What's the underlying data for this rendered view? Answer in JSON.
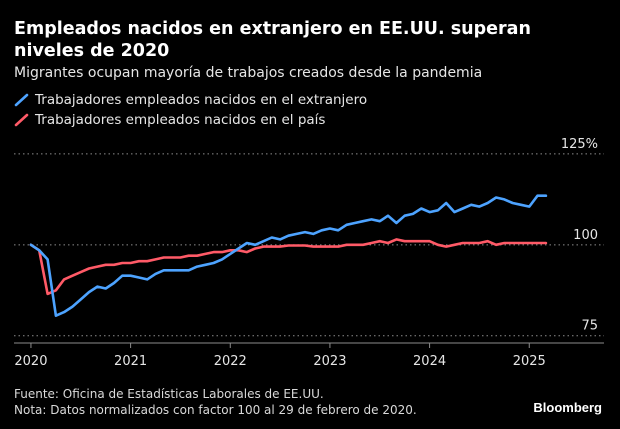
{
  "header": {
    "title": "Empleados nacidos en extranjero en EE.UU. superan niveles de 2020",
    "subtitle": "Migrantes ocupan mayoría de trabajos creados desde la pandemia"
  },
  "footer": {
    "source": "Fuente: Oficina de Estadísticas Laborales de EE.UU.",
    "note": "Nota: Datos normalizados con factor 100 al 29 de febrero de 2020.",
    "brand": "Bloomberg"
  },
  "colors": {
    "background": "#000000",
    "foreign_series": "#4da3ff",
    "native_series": "#ff5a67",
    "gridline": "#8c8c8c",
    "text": "#ffffff"
  },
  "chart_data": {
    "type": "line",
    "x_type": "year",
    "xlim": [
      2019.83,
      2025.75
    ],
    "ylim": [
      73,
      128
    ],
    "x_ticks": [
      {
        "value": 2020,
        "label": "2020"
      },
      {
        "value": 2021,
        "label": "2021"
      },
      {
        "value": 2022,
        "label": "2022"
      },
      {
        "value": 2023,
        "label": "2023"
      },
      {
        "value": 2024,
        "label": "2024"
      },
      {
        "value": 2025,
        "label": "2025"
      }
    ],
    "y_ticks": [
      {
        "value": 75,
        "label": "75"
      },
      {
        "value": 100,
        "label": "100"
      },
      {
        "value": 125,
        "label": "125%"
      }
    ],
    "grid": "horizontal-dotted",
    "legend_position": "top-left",
    "series": [
      {
        "name": "Trabajadores empleados nacidos en el extranjero",
        "color": "#4da3ff",
        "points": [
          [
            2020.0,
            100.0
          ],
          [
            2020.083,
            98.5
          ],
          [
            2020.167,
            96.0
          ],
          [
            2020.25,
            80.5
          ],
          [
            2020.333,
            81.5
          ],
          [
            2020.417,
            83.0
          ],
          [
            2020.5,
            85.0
          ],
          [
            2020.583,
            87.0
          ],
          [
            2020.667,
            88.5
          ],
          [
            2020.75,
            88.0
          ],
          [
            2020.833,
            89.5
          ],
          [
            2020.917,
            91.5
          ],
          [
            2021.0,
            91.5
          ],
          [
            2021.083,
            91.0
          ],
          [
            2021.167,
            90.5
          ],
          [
            2021.25,
            92.0
          ],
          [
            2021.333,
            93.0
          ],
          [
            2021.417,
            93.0
          ],
          [
            2021.5,
            93.0
          ],
          [
            2021.583,
            93.0
          ],
          [
            2021.667,
            94.0
          ],
          [
            2021.75,
            94.5
          ],
          [
            2021.833,
            95.0
          ],
          [
            2021.917,
            96.0
          ],
          [
            2022.0,
            97.5
          ],
          [
            2022.083,
            99.0
          ],
          [
            2022.167,
            100.5
          ],
          [
            2022.25,
            100.0
          ],
          [
            2022.333,
            101.0
          ],
          [
            2022.417,
            102.0
          ],
          [
            2022.5,
            101.5
          ],
          [
            2022.583,
            102.5
          ],
          [
            2022.667,
            103.0
          ],
          [
            2022.75,
            103.5
          ],
          [
            2022.833,
            103.0
          ],
          [
            2022.917,
            104.0
          ],
          [
            2023.0,
            104.5
          ],
          [
            2023.083,
            104.0
          ],
          [
            2023.167,
            105.5
          ],
          [
            2023.25,
            106.0
          ],
          [
            2023.333,
            106.5
          ],
          [
            2023.417,
            107.0
          ],
          [
            2023.5,
            106.5
          ],
          [
            2023.583,
            108.0
          ],
          [
            2023.667,
            106.0
          ],
          [
            2023.75,
            108.0
          ],
          [
            2023.833,
            108.5
          ],
          [
            2023.917,
            110.0
          ],
          [
            2024.0,
            109.0
          ],
          [
            2024.083,
            109.5
          ],
          [
            2024.167,
            111.5
          ],
          [
            2024.25,
            109.0
          ],
          [
            2024.333,
            110.0
          ],
          [
            2024.417,
            111.0
          ],
          [
            2024.5,
            110.5
          ],
          [
            2024.583,
            111.5
          ],
          [
            2024.667,
            113.0
          ],
          [
            2024.75,
            112.5
          ],
          [
            2024.833,
            111.5
          ],
          [
            2024.917,
            111.0
          ],
          [
            2025.0,
            110.5
          ],
          [
            2025.083,
            113.5
          ],
          [
            2025.167,
            113.5
          ]
        ]
      },
      {
        "name": "Trabajadores empleados nacidos en el país",
        "color": "#ff5a67",
        "points": [
          [
            2020.0,
            100.0
          ],
          [
            2020.083,
            98.5
          ],
          [
            2020.167,
            86.5
          ],
          [
            2020.25,
            87.5
          ],
          [
            2020.333,
            90.5
          ],
          [
            2020.417,
            91.5
          ],
          [
            2020.5,
            92.5
          ],
          [
            2020.583,
            93.5
          ],
          [
            2020.667,
            94.0
          ],
          [
            2020.75,
            94.5
          ],
          [
            2020.833,
            94.5
          ],
          [
            2020.917,
            95.0
          ],
          [
            2021.0,
            95.0
          ],
          [
            2021.083,
            95.5
          ],
          [
            2021.167,
            95.5
          ],
          [
            2021.25,
            96.0
          ],
          [
            2021.333,
            96.5
          ],
          [
            2021.417,
            96.5
          ],
          [
            2021.5,
            96.5
          ],
          [
            2021.583,
            97.0
          ],
          [
            2021.667,
            97.0
          ],
          [
            2021.75,
            97.5
          ],
          [
            2021.833,
            98.0
          ],
          [
            2021.917,
            98.0
          ],
          [
            2022.0,
            98.5
          ],
          [
            2022.083,
            98.5
          ],
          [
            2022.167,
            98.0
          ],
          [
            2022.25,
            99.0
          ],
          [
            2022.333,
            99.5
          ],
          [
            2022.417,
            99.5
          ],
          [
            2022.5,
            99.5
          ],
          [
            2022.583,
            99.8
          ],
          [
            2022.667,
            99.8
          ],
          [
            2022.75,
            99.8
          ],
          [
            2022.833,
            99.5
          ],
          [
            2022.917,
            99.5
          ],
          [
            2023.0,
            99.5
          ],
          [
            2023.083,
            99.5
          ],
          [
            2023.167,
            100.0
          ],
          [
            2023.25,
            100.0
          ],
          [
            2023.333,
            100.0
          ],
          [
            2023.417,
            100.5
          ],
          [
            2023.5,
            101.0
          ],
          [
            2023.583,
            100.5
          ],
          [
            2023.667,
            101.5
          ],
          [
            2023.75,
            101.0
          ],
          [
            2023.833,
            101.0
          ],
          [
            2023.917,
            101.0
          ],
          [
            2024.0,
            101.0
          ],
          [
            2024.083,
            100.0
          ],
          [
            2024.167,
            99.5
          ],
          [
            2024.25,
            100.0
          ],
          [
            2024.333,
            100.5
          ],
          [
            2024.417,
            100.5
          ],
          [
            2024.5,
            100.5
          ],
          [
            2024.583,
            101.0
          ],
          [
            2024.667,
            100.0
          ],
          [
            2024.75,
            100.5
          ],
          [
            2024.833,
            100.5
          ],
          [
            2024.917,
            100.5
          ],
          [
            2025.0,
            100.5
          ],
          [
            2025.083,
            100.5
          ],
          [
            2025.167,
            100.5
          ]
        ]
      }
    ]
  }
}
